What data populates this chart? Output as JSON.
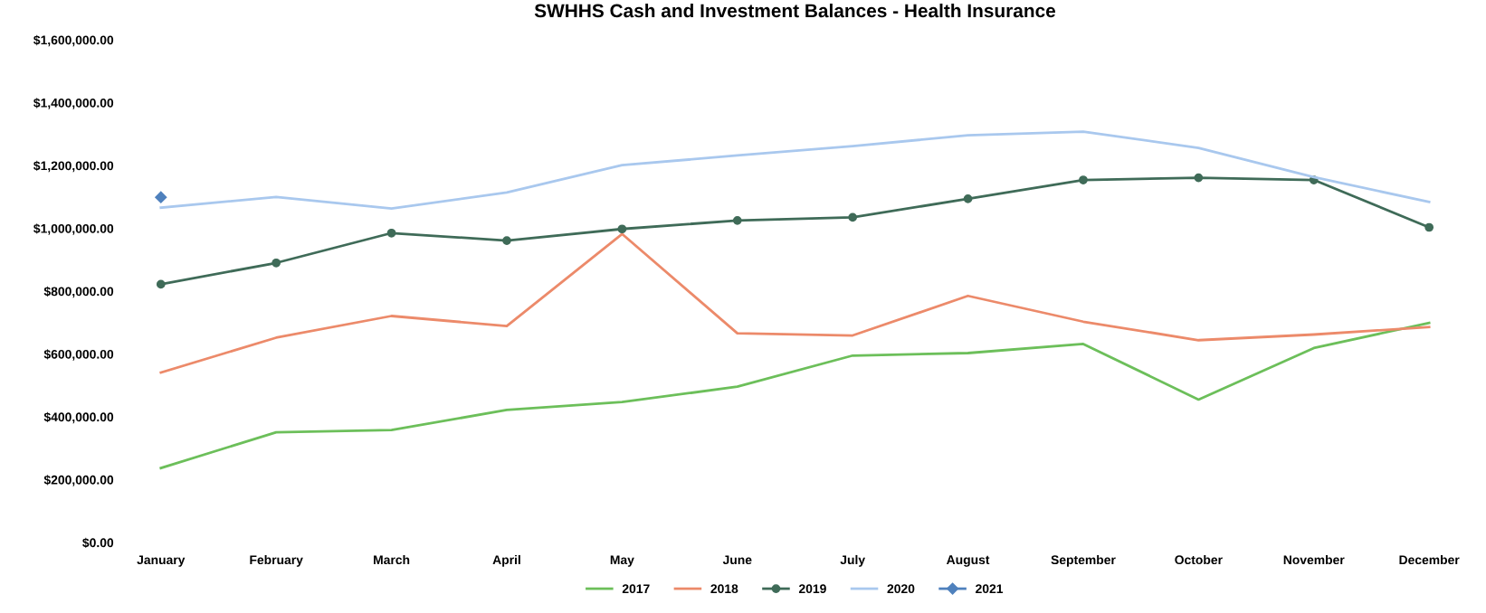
{
  "chart_data": {
    "type": "line",
    "title": "SWHHS Cash and Investment Balances - Health Insurance",
    "categories": [
      "January",
      "February",
      "March",
      "April",
      "May",
      "June",
      "July",
      "August",
      "September",
      "October",
      "November",
      "December"
    ],
    "series": [
      {
        "name": "2017",
        "color": "#6cbf5a",
        "marker": "none",
        "values": [
          237000,
          351000,
          358000,
          422000,
          447000,
          496000,
          595000,
          603000,
          632000,
          455000,
          619000,
          699000
        ]
      },
      {
        "name": "2018",
        "color": "#ec8a6a",
        "marker": "none",
        "values": [
          541000,
          652000,
          721000,
          689000,
          982000,
          666000,
          659000,
          785000,
          703000,
          644000,
          662000,
          686000
        ]
      },
      {
        "name": "2019",
        "color": "#3f6b58",
        "marker": "circle",
        "values": [
          822000,
          890000,
          985000,
          961000,
          998000,
          1025000,
          1035000,
          1094000,
          1154000,
          1161000,
          1154000,
          1003000
        ]
      },
      {
        "name": "2020",
        "color": "#a9c8ee",
        "marker": "none",
        "values": [
          1066000,
          1100000,
          1063000,
          1114000,
          1201000,
          1232000,
          1262000,
          1296000,
          1308000,
          1256000,
          1163000,
          1084000
        ]
      },
      {
        "name": "2021",
        "color": "#4f81bd",
        "marker": "diamond",
        "values": [
          1099000,
          null,
          null,
          null,
          null,
          null,
          null,
          null,
          null,
          null,
          null,
          null
        ]
      }
    ],
    "ylim": [
      0,
      1600000
    ],
    "yticks": [
      {
        "value": 0,
        "label": "$0.00"
      },
      {
        "value": 200000,
        "label": "$200,000.00"
      },
      {
        "value": 400000,
        "label": "$400,000.00"
      },
      {
        "value": 600000,
        "label": "$600,000.00"
      },
      {
        "value": 800000,
        "label": "$800,000.00"
      },
      {
        "value": 1000000,
        "label": "$1,000,000.00"
      },
      {
        "value": 1200000,
        "label": "$1,200,000.00"
      },
      {
        "value": 1400000,
        "label": "$1,400,000.00"
      },
      {
        "value": 1600000,
        "label": "$1,600,000.00"
      }
    ],
    "grid": false,
    "legend": "bottom"
  }
}
